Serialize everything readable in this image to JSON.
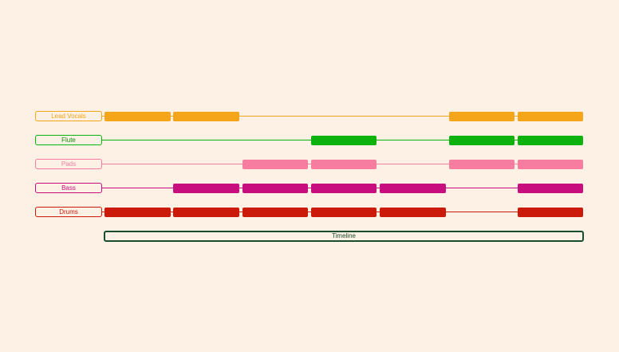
{
  "timeline": {
    "label": "Timeline",
    "color": "#1a4d2e",
    "sections": 7
  },
  "tracks": [
    {
      "name": "Lead Vocals",
      "color": "#f5a519",
      "clip_color": "#f5a519",
      "label_text_color": "#f5a519",
      "line_color": "#f5a519",
      "clips": [
        1,
        2,
        6,
        7
      ]
    },
    {
      "name": "Flute",
      "color": "#0db20d",
      "clip_color": "#0db20d",
      "label_text_color": "#0a8f0a",
      "line_color": "#0db20d",
      "clips": [
        4,
        6,
        7
      ]
    },
    {
      "name": "Pads",
      "color": "#f77da0",
      "clip_color": "#f77da0",
      "label_text_color": "#f77da0",
      "line_color": "#f77da0",
      "clips": [
        3,
        4,
        6,
        7
      ]
    },
    {
      "name": "Bass",
      "color": "#c80e7f",
      "clip_color": "#c80e7f",
      "label_text_color": "#c80e7f",
      "line_color": "#c80e7f",
      "clips": [
        2,
        3,
        4,
        5,
        7
      ]
    },
    {
      "name": "Drums",
      "color": "#cc1a0a",
      "clip_color": "#cc1a0a",
      "label_text_color": "#cc1a0a",
      "line_color": "#cc1a0a",
      "clips": [
        1,
        2,
        3,
        4,
        5,
        7
      ]
    }
  ]
}
